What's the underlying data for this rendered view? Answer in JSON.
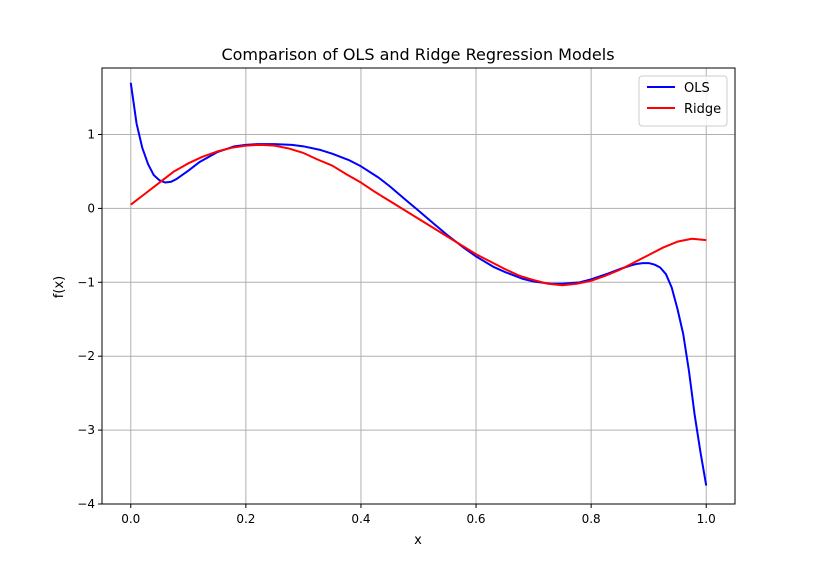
{
  "chart_data": {
    "type": "line",
    "title": "Comparison of OLS and Ridge Regression Models",
    "xlabel": "x",
    "ylabel": "f(x)",
    "xlim": [
      -0.05,
      1.05
    ],
    "ylim": [
      -4,
      1.9
    ],
    "xticks": [
      0.0,
      0.2,
      0.4,
      0.6,
      0.8,
      1.0
    ],
    "xtick_labels": [
      "0.0",
      "0.2",
      "0.4",
      "0.6",
      "0.8",
      "1.0"
    ],
    "yticks": [
      -4,
      -3,
      -2,
      -1,
      0,
      1
    ],
    "ytick_labels": [
      "−4",
      "−3",
      "−2",
      "−1",
      "0",
      "1"
    ],
    "grid": true,
    "legend_position": "top-right",
    "series": [
      {
        "name": "OLS",
        "color": "#0000ff",
        "x": [
          0.0,
          0.01,
          0.02,
          0.03,
          0.04,
          0.05,
          0.06,
          0.07,
          0.08,
          0.1,
          0.12,
          0.15,
          0.18,
          0.2,
          0.22,
          0.25,
          0.28,
          0.3,
          0.33,
          0.35,
          0.38,
          0.4,
          0.43,
          0.45,
          0.48,
          0.5,
          0.53,
          0.55,
          0.58,
          0.6,
          0.63,
          0.65,
          0.68,
          0.7,
          0.73,
          0.75,
          0.78,
          0.8,
          0.83,
          0.85,
          0.87,
          0.88,
          0.89,
          0.9,
          0.91,
          0.92,
          0.93,
          0.94,
          0.95,
          0.96,
          0.97,
          0.98,
          0.99,
          1.0
        ],
        "y": [
          1.7,
          1.15,
          0.82,
          0.6,
          0.45,
          0.38,
          0.35,
          0.36,
          0.4,
          0.51,
          0.63,
          0.76,
          0.84,
          0.86,
          0.87,
          0.87,
          0.86,
          0.84,
          0.79,
          0.74,
          0.65,
          0.57,
          0.42,
          0.3,
          0.1,
          -0.03,
          -0.23,
          -0.36,
          -0.54,
          -0.65,
          -0.79,
          -0.86,
          -0.95,
          -0.99,
          -1.02,
          -1.02,
          -1.0,
          -0.96,
          -0.88,
          -0.82,
          -0.77,
          -0.75,
          -0.74,
          -0.74,
          -0.76,
          -0.8,
          -0.89,
          -1.07,
          -1.36,
          -1.7,
          -2.2,
          -2.8,
          -3.3,
          -3.75
        ]
      },
      {
        "name": "Ridge",
        "color": "#ff0000",
        "x": [
          0.0,
          0.025,
          0.05,
          0.075,
          0.1,
          0.125,
          0.15,
          0.175,
          0.2,
          0.225,
          0.25,
          0.275,
          0.3,
          0.325,
          0.35,
          0.375,
          0.4,
          0.425,
          0.45,
          0.475,
          0.5,
          0.525,
          0.55,
          0.575,
          0.6,
          0.625,
          0.65,
          0.675,
          0.7,
          0.725,
          0.75,
          0.775,
          0.8,
          0.825,
          0.85,
          0.875,
          0.9,
          0.925,
          0.95,
          0.975,
          1.0
        ],
        "y": [
          0.05,
          0.2,
          0.35,
          0.5,
          0.61,
          0.7,
          0.77,
          0.82,
          0.85,
          0.86,
          0.85,
          0.81,
          0.75,
          0.66,
          0.58,
          0.46,
          0.35,
          0.22,
          0.1,
          -0.02,
          -0.14,
          -0.26,
          -0.38,
          -0.5,
          -0.62,
          -0.72,
          -0.82,
          -0.91,
          -0.97,
          -1.02,
          -1.04,
          -1.02,
          -0.98,
          -0.91,
          -0.83,
          -0.73,
          -0.63,
          -0.53,
          -0.45,
          -0.41,
          -0.43
        ]
      }
    ]
  }
}
